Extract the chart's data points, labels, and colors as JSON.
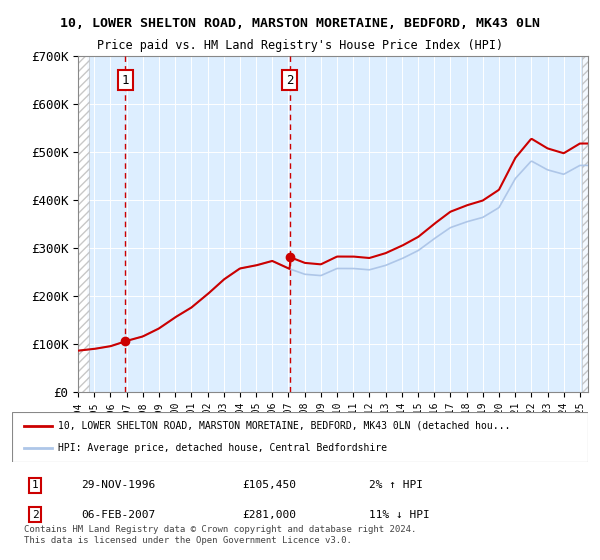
{
  "title_line1": "10, LOWER SHELTON ROAD, MARSTON MORETAINE, BEDFORD, MK43 0LN",
  "title_line2": "Price paid vs. HM Land Registry's House Price Index (HPI)",
  "ylabel": "",
  "xlabel": "",
  "ylim": [
    0,
    700000
  ],
  "yticks": [
    0,
    100000,
    200000,
    300000,
    400000,
    500000,
    600000,
    700000
  ],
  "ytick_labels": [
    "£0",
    "£100K",
    "£200K",
    "£300K",
    "£400K",
    "£500K",
    "£600K",
    "£700K"
  ],
  "sale1_date_x": 1996.91,
  "sale1_price": 105450,
  "sale1_label": "1",
  "sale1_date_str": "29-NOV-1996",
  "sale1_price_str": "£105,450",
  "sale1_hpi_str": "2% ↑ HPI",
  "sale2_date_x": 2007.09,
  "sale2_price": 281000,
  "sale2_label": "2",
  "sale2_date_str": "06-FEB-2007",
  "sale2_price_str": "£281,000",
  "sale2_hpi_str": "11% ↓ HPI",
  "hpi_color": "#aec6e8",
  "price_color": "#cc0000",
  "dot_color": "#cc0000",
  "vline_color": "#cc0000",
  "bg_hatch_color": "#d0d0d0",
  "legend_label_property": "10, LOWER SHELTON ROAD, MARSTON MORETAINE, BEDFORD, MK43 0LN (detached hou...",
  "legend_label_hpi": "HPI: Average price, detached house, Central Bedfordshire",
  "footer": "Contains HM Land Registry data © Crown copyright and database right 2024.\nThis data is licensed under the Open Government Licence v3.0.",
  "xmin": 1994,
  "xmax": 2025.5,
  "box_color": "#cc0000",
  "box_facecolor": "white"
}
